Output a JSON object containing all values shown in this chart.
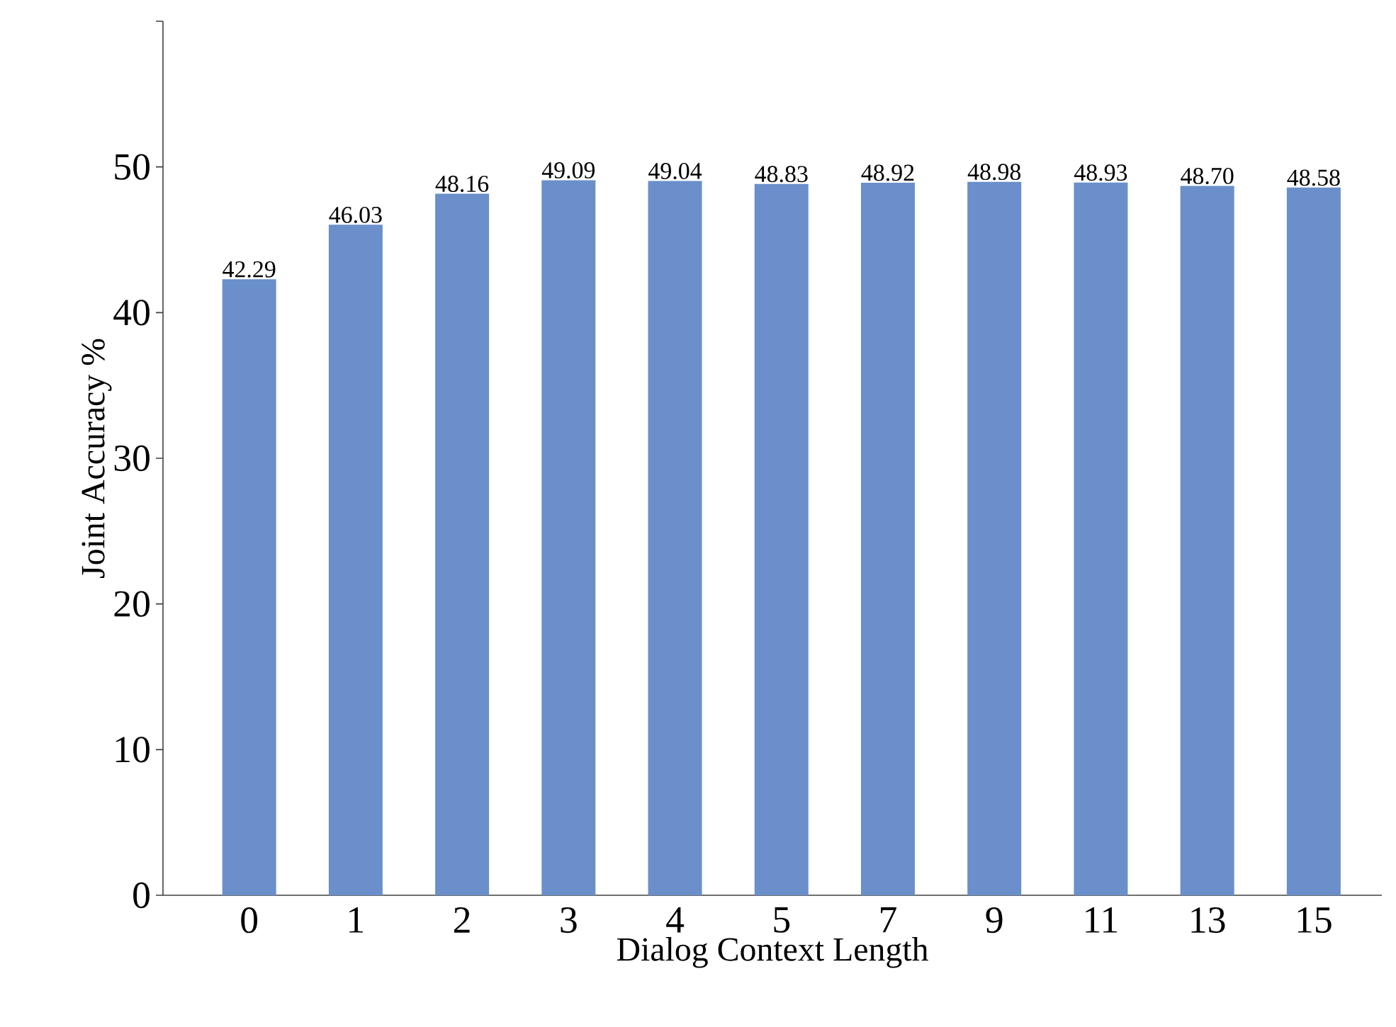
{
  "chart_data": {
    "type": "bar",
    "xlabel": "Dialog Context Length",
    "ylabel": "Joint Accuracy %",
    "categories": [
      "0",
      "1",
      "2",
      "3",
      "4",
      "5",
      "7",
      "9",
      "11",
      "13",
      "15"
    ],
    "values": [
      42.29,
      46.03,
      48.16,
      49.09,
      49.04,
      48.83,
      48.92,
      48.98,
      48.93,
      48.7,
      48.58
    ],
    "value_labels": [
      "42.29",
      "46.03",
      "48.16",
      "49.09",
      "49.04",
      "48.83",
      "48.92",
      "48.98",
      "48.93",
      "48.70",
      "48.58"
    ],
    "color": "#6a8fca",
    "ylim": [
      0,
      60
    ],
    "yticks": [
      0,
      10,
      20,
      30,
      40,
      50,
      {
        "value": 60,
        "label": null
      }
    ],
    "grid": false
  }
}
